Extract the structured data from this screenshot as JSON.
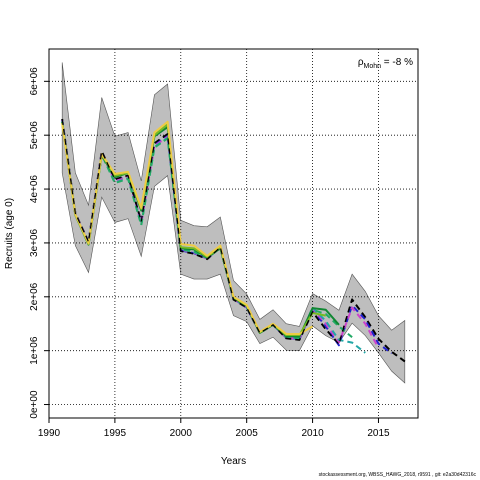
{
  "chart_data": {
    "type": "line",
    "xlabel": "Years",
    "ylabel": "Recruits (age 0)",
    "xlim": [
      1990,
      2018
    ],
    "ylim": [
      -250000,
      6600000
    ],
    "x_ticks": [
      1990,
      1995,
      2000,
      2005,
      2010,
      2015
    ],
    "y_ticks": [
      0,
      1000000,
      2000000,
      3000000,
      4000000,
      5000000,
      6000000
    ],
    "y_tick_labels": [
      "0e+00",
      "1e+06",
      "2e+06",
      "3e+06",
      "4e+06",
      "5e+06",
      "6e+06"
    ],
    "grid": true,
    "annotation": {
      "symbol": "ρ",
      "subscript": "Mohn",
      "text": " = -8 %"
    },
    "confidence_band": {
      "color": "#bebebe",
      "x": [
        1991,
        1992,
        1993,
        1994,
        1995,
        1996,
        1997,
        1998,
        1999,
        2000,
        2001,
        2002,
        2003,
        2004,
        2005,
        2006,
        2007,
        2008,
        2009,
        2010,
        2011,
        2012,
        2013,
        2014,
        2015,
        2016,
        2017
      ],
      "upper": [
        6350000,
        4300000,
        3700000,
        5700000,
        4980000,
        5050000,
        4150000,
        5750000,
        5950000,
        3420000,
        3320000,
        3300000,
        3480000,
        2300000,
        2050000,
        1580000,
        1760000,
        1500000,
        1450000,
        2060000,
        1920000,
        1750000,
        2420000,
        2100000,
        1650000,
        1380000,
        1560000
      ],
      "lower": [
        4300000,
        2950000,
        2450000,
        3850000,
        3380000,
        3450000,
        2750000,
        4050000,
        4250000,
        2420000,
        2330000,
        2330000,
        2420000,
        1650000,
        1540000,
        1130000,
        1250000,
        1010000,
        1000000,
        1460000,
        1280000,
        1150000,
        1510000,
        1280000,
        960000,
        620000,
        400000
      ]
    },
    "series": [
      {
        "color": "#000000",
        "dash": "6,4",
        "x": [
          1991,
          1992,
          1993,
          1994,
          1995,
          1996,
          1997,
          1998,
          1999,
          2000,
          2001,
          2002,
          2003,
          2004,
          2005,
          2006,
          2007,
          2008,
          2009,
          2010,
          2011,
          2012,
          2013,
          2014,
          2015,
          2016,
          2017
        ],
        "values": [
          5300000,
          3550000,
          3020000,
          4700000,
          4180000,
          4250000,
          3400000,
          4850000,
          5020000,
          2850000,
          2800000,
          2700000,
          2920000,
          1950000,
          1800000,
          1330000,
          1480000,
          1230000,
          1200000,
          1720000,
          1400000,
          1120000,
          1950000,
          1620000,
          1220000,
          980000,
          800000
        ]
      },
      {
        "color": "#2222cc",
        "dash": "6,4",
        "x": [
          1991,
          1992,
          1993,
          1994,
          1995,
          1996,
          1997,
          1998,
          1999,
          2000,
          2001,
          2002,
          2003,
          2004,
          2005,
          2006,
          2007,
          2008,
          2009,
          2010,
          2011,
          2012,
          2013,
          2014,
          2015,
          2016
        ],
        "values": [
          5280000,
          3540000,
          3010000,
          4680000,
          4160000,
          4230000,
          3380000,
          4820000,
          4990000,
          2860000,
          2810000,
          2710000,
          2920000,
          1960000,
          1800000,
          1340000,
          1480000,
          1240000,
          1210000,
          1760000,
          1450000,
          1100000,
          1840000,
          1580000,
          1130000,
          950000
        ]
      },
      {
        "color": "#cc44cc",
        "dash": "6,4",
        "x": [
          1991,
          1992,
          1993,
          1994,
          1995,
          1996,
          1997,
          1998,
          1999,
          2000,
          2001,
          2002,
          2003,
          2004,
          2005,
          2006,
          2007,
          2008,
          2009,
          2010,
          2011,
          2012,
          2013,
          2014,
          2015
        ],
        "values": [
          5270000,
          3540000,
          3000000,
          4670000,
          4150000,
          4220000,
          3370000,
          4800000,
          4970000,
          2870000,
          2820000,
          2710000,
          2930000,
          1960000,
          1810000,
          1340000,
          1490000,
          1240000,
          1220000,
          1780000,
          1500000,
          1150000,
          1800000,
          1500000,
          1050000
        ]
      },
      {
        "color": "#22a6a6",
        "dash": "6,4",
        "x": [
          1991,
          1992,
          1993,
          1994,
          1995,
          1996,
          1997,
          1998,
          1999,
          2000,
          2001,
          2002,
          2003,
          2004,
          2005,
          2006,
          2007,
          2008,
          2009,
          2010,
          2011,
          2012,
          2013,
          2014
        ],
        "values": [
          5260000,
          3530000,
          2990000,
          4650000,
          4120000,
          4200000,
          3340000,
          4780000,
          4950000,
          2880000,
          2830000,
          2720000,
          2920000,
          1970000,
          1810000,
          1340000,
          1490000,
          1250000,
          1230000,
          1800000,
          1550000,
          1200000,
          1150000,
          960000
        ]
      },
      {
        "color": "#22aa66",
        "dash": "6,4",
        "x": [
          1991,
          1992,
          1993,
          1994,
          1995,
          1996,
          1997,
          1998,
          1999,
          2000,
          2001,
          2002,
          2003,
          2004,
          2005,
          2006,
          2007,
          2008,
          2009,
          2010,
          2011,
          2012,
          2013
        ],
        "values": [
          5250000,
          3520000,
          2980000,
          4640000,
          4110000,
          4190000,
          3330000,
          4770000,
          4940000,
          2880000,
          2840000,
          2720000,
          2910000,
          1970000,
          1820000,
          1340000,
          1490000,
          1250000,
          1230000,
          1760000,
          1680000,
          1450000,
          1250000
        ]
      },
      {
        "color": "#118833",
        "dash": "",
        "x": [
          1991,
          1992,
          1993,
          1994,
          1995,
          1996,
          1997,
          1998,
          1999,
          2000,
          2001,
          2002,
          2003,
          2004,
          2005,
          2006,
          2007,
          2008,
          2009,
          2010,
          2011,
          2012
        ],
        "values": [
          5240000,
          3520000,
          2970000,
          4630000,
          4220000,
          4300000,
          3600000,
          4980000,
          5150000,
          2900000,
          2880000,
          2730000,
          2900000,
          1980000,
          1830000,
          1330000,
          1480000,
          1270000,
          1260000,
          1790000,
          1760000,
          1480000
        ]
      },
      {
        "color": "#77bb22",
        "dash": "",
        "x": [
          1991,
          1992,
          1993,
          1994,
          1995,
          1996,
          1997,
          1998,
          1999,
          2000,
          2001,
          2002,
          2003,
          2004,
          2005,
          2006,
          2007,
          2008,
          2009,
          2010,
          2011
        ],
        "values": [
          5230000,
          3520000,
          2980000,
          4640000,
          4250000,
          4300000,
          3630000,
          5000000,
          5200000,
          2920000,
          2900000,
          2740000,
          2920000,
          1990000,
          1840000,
          1340000,
          1490000,
          1290000,
          1290000,
          1700000,
          1650000
        ]
      },
      {
        "color": "#eecc44",
        "dash": "",
        "x": [
          1991,
          1992,
          1993,
          1994,
          1995,
          1996,
          1997,
          1998,
          1999,
          2000,
          2001,
          2002,
          2003,
          2004,
          2005,
          2006,
          2007,
          2008,
          2009,
          2010
        ],
        "values": [
          5220000,
          3530000,
          2990000,
          4650000,
          4280000,
          4320000,
          3650000,
          5050000,
          5250000,
          2980000,
          2950000,
          2760000,
          2950000,
          2000000,
          1850000,
          1350000,
          1500000,
          1310000,
          1310000,
          1450000
        ]
      }
    ]
  },
  "footer": {
    "text": "stockassessment.org, WBSS_HAWG_2018, r9591 , git: e2a30d42316c"
  }
}
